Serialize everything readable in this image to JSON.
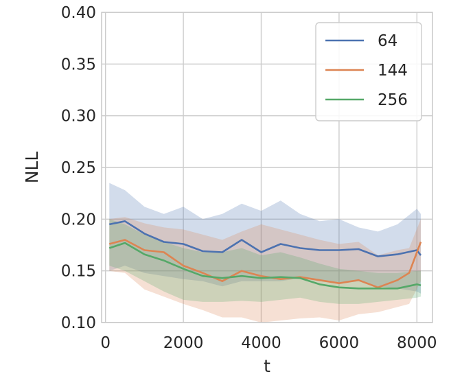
{
  "chart_data": {
    "type": "line",
    "title": "",
    "xlabel": "t",
    "ylabel": "NLL",
    "xlim": [
      -100,
      8400
    ],
    "ylim": [
      0.1,
      0.4
    ],
    "xticks": [
      0,
      2000,
      4000,
      6000,
      8000
    ],
    "xtick_labels": [
      "0",
      "2000",
      "4000",
      "6000",
      "8000"
    ],
    "yticks": [
      0.1,
      0.15,
      0.2,
      0.25,
      0.3,
      0.35,
      0.4
    ],
    "ytick_labels": [
      "0.10",
      "0.15",
      "0.20",
      "0.25",
      "0.30",
      "0.35",
      "0.40"
    ],
    "grid": true,
    "legend_position": "top-right",
    "series": [
      {
        "name": "64",
        "color": "#4c72b0",
        "x": [
          100,
          500,
          1000,
          1500,
          2000,
          2500,
          3000,
          3500,
          4000,
          4500,
          5000,
          5500,
          6000,
          6500,
          7000,
          7500,
          8000,
          8100
        ],
        "y": [
          0.195,
          0.198,
          0.186,
          0.178,
          0.176,
          0.169,
          0.168,
          0.18,
          0.168,
          0.176,
          0.172,
          0.17,
          0.17,
          0.171,
          0.164,
          0.166,
          0.17,
          0.165
        ],
        "lower": [
          0.15,
          0.155,
          0.148,
          0.145,
          0.142,
          0.14,
          0.135,
          0.14,
          0.14,
          0.14,
          0.143,
          0.14,
          0.138,
          0.14,
          0.135,
          0.133,
          0.13,
          0.128
        ],
        "upper": [
          0.235,
          0.228,
          0.212,
          0.205,
          0.212,
          0.2,
          0.205,
          0.215,
          0.208,
          0.218,
          0.205,
          0.198,
          0.2,
          0.192,
          0.188,
          0.195,
          0.21,
          0.205
        ]
      },
      {
        "name": "144",
        "color": "#dd8452",
        "x": [
          100,
          500,
          1000,
          1500,
          2000,
          2500,
          3000,
          3500,
          4000,
          4500,
          5000,
          5500,
          6000,
          6500,
          7000,
          7500,
          7800,
          8100
        ],
        "y": [
          0.176,
          0.18,
          0.17,
          0.168,
          0.155,
          0.148,
          0.14,
          0.15,
          0.145,
          0.142,
          0.144,
          0.141,
          0.138,
          0.141,
          0.134,
          0.141,
          0.148,
          0.178
        ],
        "lower": [
          0.15,
          0.148,
          0.132,
          0.125,
          0.118,
          0.112,
          0.105,
          0.105,
          0.1,
          0.102,
          0.104,
          0.105,
          0.102,
          0.108,
          0.11,
          0.115,
          0.118,
          0.14
        ],
        "upper": [
          0.2,
          0.202,
          0.196,
          0.192,
          0.19,
          0.185,
          0.18,
          0.188,
          0.195,
          0.19,
          0.185,
          0.18,
          0.176,
          0.178,
          0.165,
          0.17,
          0.172,
          0.2
        ]
      },
      {
        "name": "256",
        "color": "#55a868",
        "x": [
          100,
          500,
          1000,
          1500,
          2000,
          2500,
          3000,
          3500,
          4000,
          4500,
          5000,
          5500,
          6000,
          6500,
          7000,
          7500,
          8000,
          8100
        ],
        "y": [
          0.172,
          0.177,
          0.166,
          0.16,
          0.152,
          0.145,
          0.143,
          0.145,
          0.143,
          0.144,
          0.143,
          0.137,
          0.134,
          0.133,
          0.133,
          0.133,
          0.137,
          0.136
        ],
        "lower": [
          0.155,
          0.15,
          0.14,
          0.13,
          0.122,
          0.12,
          0.12,
          0.121,
          0.12,
          0.122,
          0.124,
          0.12,
          0.118,
          0.118,
          0.12,
          0.122,
          0.124,
          0.125
        ],
        "upper": [
          0.2,
          0.195,
          0.185,
          0.178,
          0.172,
          0.168,
          0.168,
          0.172,
          0.165,
          0.168,
          0.163,
          0.157,
          0.152,
          0.15,
          0.148,
          0.148,
          0.15,
          0.15
        ]
      }
    ]
  }
}
